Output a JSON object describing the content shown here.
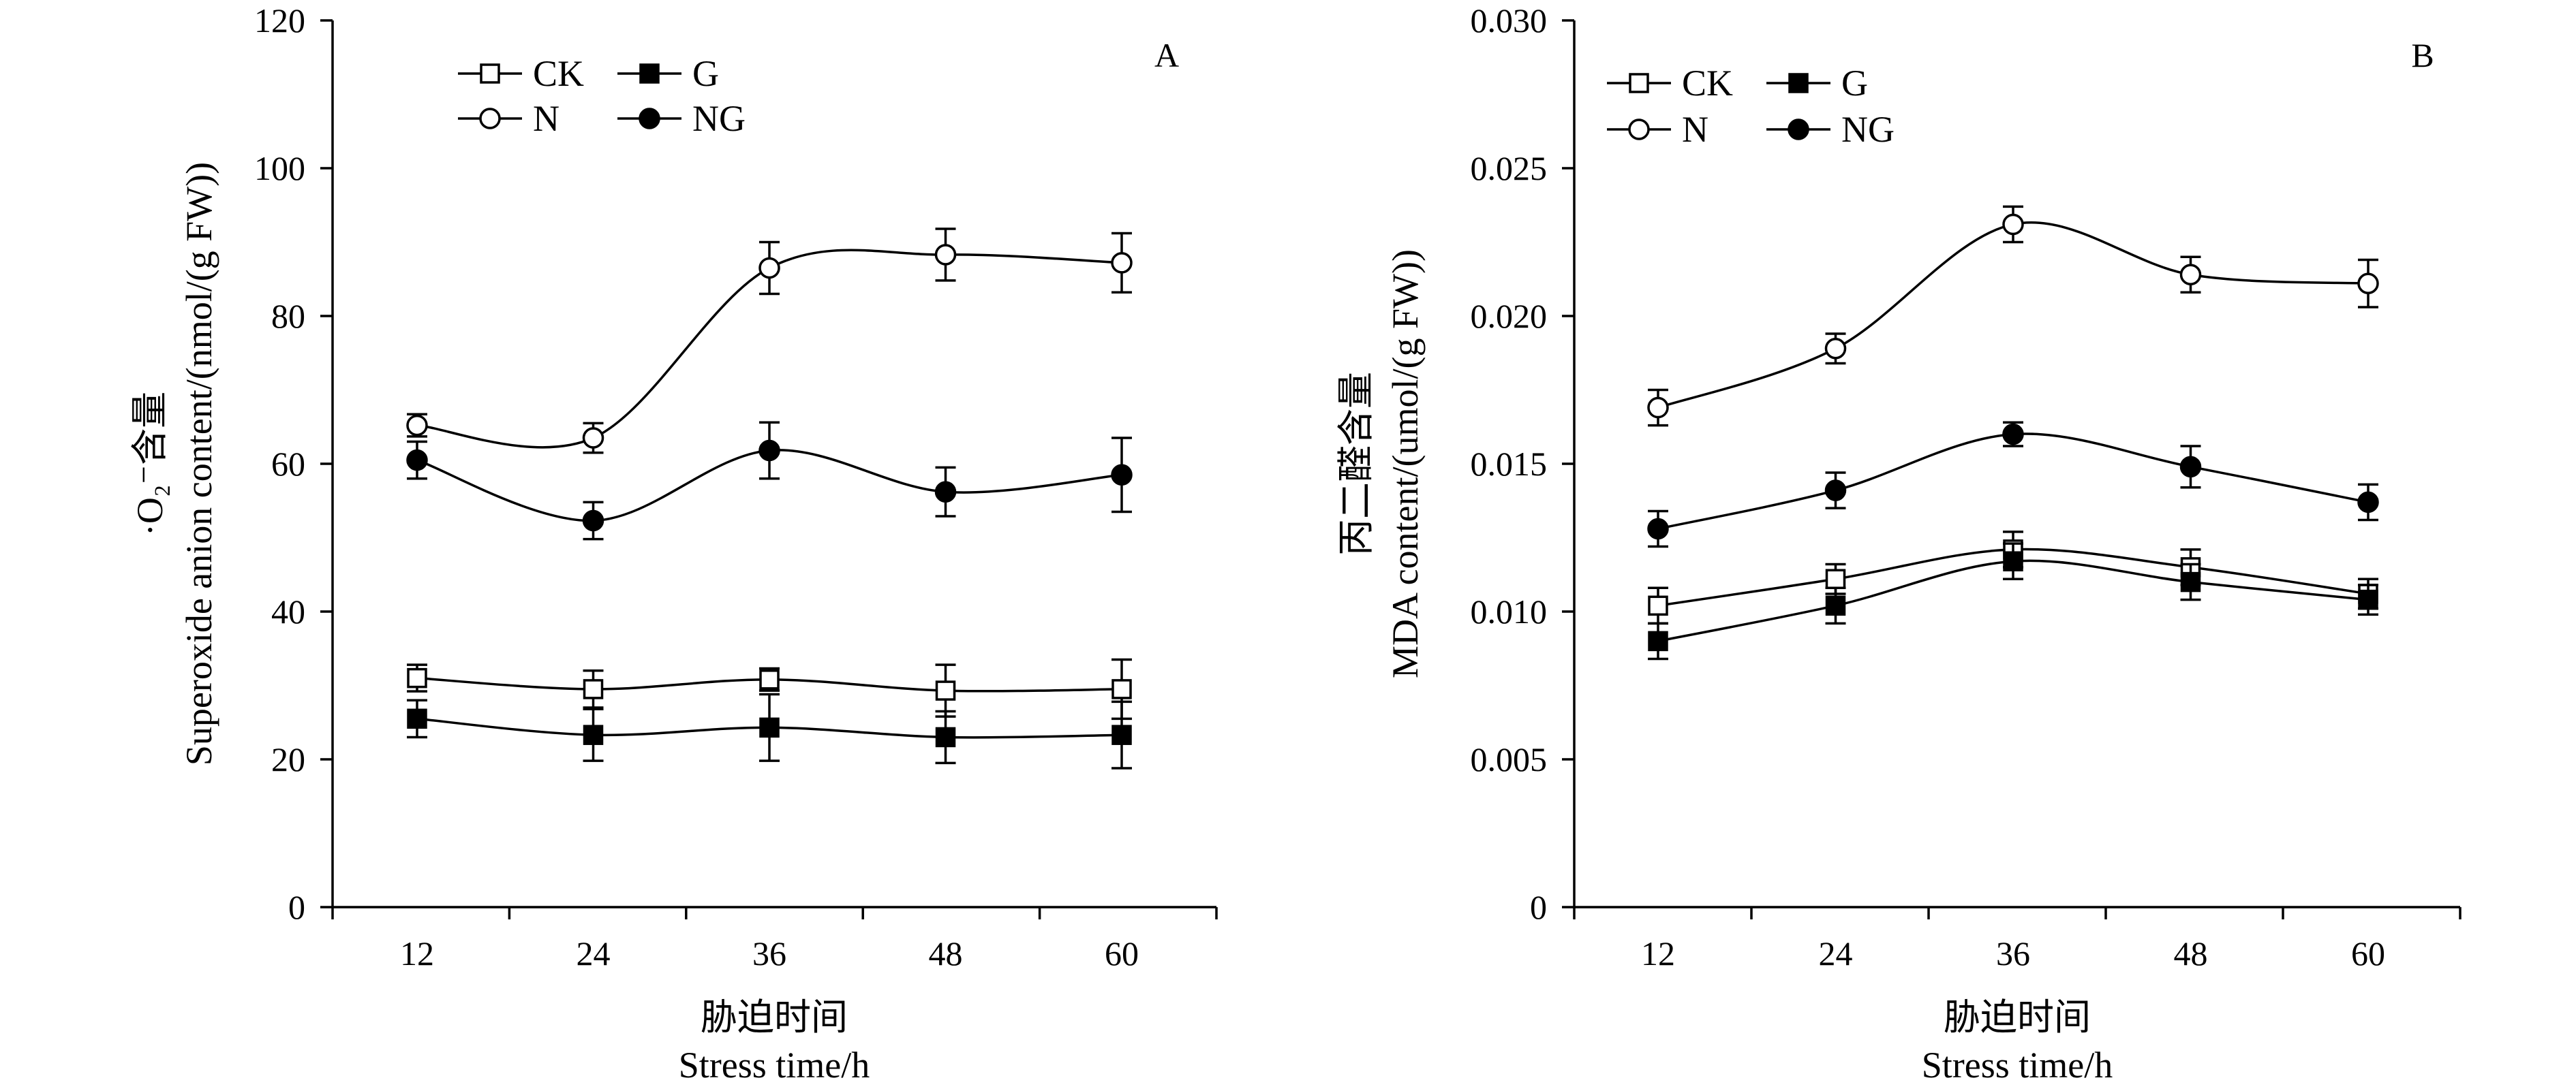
{
  "chart_data": [
    {
      "type": "line",
      "panel_label": "A",
      "categories": [
        "12",
        "24",
        "36",
        "48",
        "60"
      ],
      "xlabel_cn": "胁迫时间",
      "xlabel_en": "Stress time/h",
      "ylabel_cn": "·O₂⁻含量",
      "ylabel_en": "Superoxide anion content/(nmol/(g FW))",
      "ylim": [
        0,
        120
      ],
      "yticks": [
        0,
        20,
        40,
        60,
        80,
        100,
        120
      ],
      "ytick_labels": [
        "0",
        "20",
        "40",
        "60",
        "80",
        "100",
        "120"
      ],
      "legend_position": "top-left",
      "series": [
        {
          "name": "CK",
          "marker": "square-open",
          "values": [
            31.0,
            29.5,
            30.8,
            29.3,
            29.5
          ],
          "errors": [
            1.8,
            2.5,
            1.5,
            3.5,
            4.0
          ]
        },
        {
          "name": "G",
          "marker": "square-filled",
          "values": [
            25.5,
            23.3,
            24.3,
            23.0,
            23.3
          ],
          "errors": [
            2.5,
            3.5,
            4.5,
            3.5,
            4.5
          ]
        },
        {
          "name": "N",
          "marker": "circle-open",
          "values": [
            65.2,
            63.5,
            86.5,
            88.3,
            87.2
          ],
          "errors": [
            1.5,
            2.0,
            3.5,
            3.5,
            4.0
          ]
        },
        {
          "name": "NG",
          "marker": "circle-filled",
          "values": [
            60.5,
            52.3,
            61.8,
            56.2,
            58.5
          ],
          "errors": [
            2.5,
            2.5,
            3.8,
            3.3,
            5.0
          ]
        }
      ]
    },
    {
      "type": "line",
      "panel_label": "B",
      "categories": [
        "12",
        "24",
        "36",
        "48",
        "60"
      ],
      "xlabel_cn": "胁迫时间",
      "xlabel_en": "Stress time/h",
      "ylabel_cn": "丙二醛含量",
      "ylabel_en": "MDA content/(umol/(g FW))",
      "ylim": [
        0,
        0.03
      ],
      "yticks": [
        0,
        0.005,
        0.01,
        0.015,
        0.02,
        0.025,
        0.03
      ],
      "ytick_labels": [
        "0",
        "0.005",
        "0.010",
        "0.015",
        "0.020",
        "0.025",
        "0.030"
      ],
      "legend_position": "top-left",
      "series": [
        {
          "name": "CK",
          "marker": "square-open",
          "values": [
            0.0102,
            0.0111,
            0.0121,
            0.0115,
            0.0106
          ],
          "errors": [
            0.0006,
            0.0005,
            0.0006,
            0.0006,
            0.0005
          ]
        },
        {
          "name": "G",
          "marker": "square-filled",
          "values": [
            0.009,
            0.0102,
            0.0117,
            0.011,
            0.0104
          ],
          "errors": [
            0.0006,
            0.0006,
            0.0006,
            0.0006,
            0.0005
          ]
        },
        {
          "name": "N",
          "marker": "circle-open",
          "values": [
            0.0169,
            0.0189,
            0.0231,
            0.0214,
            0.0211
          ],
          "errors": [
            0.0006,
            0.0005,
            0.0006,
            0.0006,
            0.0008
          ]
        },
        {
          "name": "NG",
          "marker": "circle-filled",
          "values": [
            0.0128,
            0.0141,
            0.016,
            0.0149,
            0.0137
          ],
          "errors": [
            0.0006,
            0.0006,
            0.0004,
            0.0007,
            0.0006
          ]
        }
      ]
    }
  ]
}
